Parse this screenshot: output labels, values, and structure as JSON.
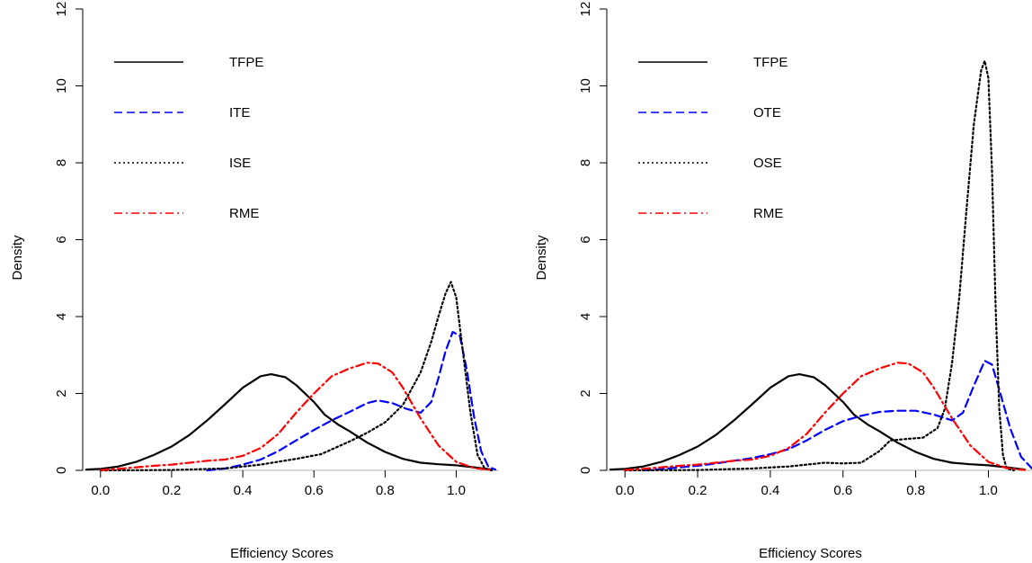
{
  "chart_data": [
    {
      "type": "line",
      "title": "",
      "xlabel": "Efficiency Scores",
      "ylabel": "Density",
      "xlim": [
        -0.05,
        1.12
      ],
      "ylim": [
        0,
        12
      ],
      "xticks": [
        "0.0",
        "0.2",
        "0.4",
        "0.6",
        "0.8",
        "1.0"
      ],
      "yticks": [
        "0",
        "2",
        "4",
        "6",
        "8",
        "10",
        "12"
      ],
      "reference_line_y": 0,
      "legend_position": "top-left",
      "grid": false,
      "series": [
        {
          "name": "TFPE",
          "color": "#000000",
          "style": "solid",
          "points": [
            [
              -0.04,
              0.02
            ],
            [
              0.0,
              0.04
            ],
            [
              0.05,
              0.1
            ],
            [
              0.1,
              0.22
            ],
            [
              0.15,
              0.4
            ],
            [
              0.2,
              0.62
            ],
            [
              0.25,
              0.92
            ],
            [
              0.3,
              1.3
            ],
            [
              0.35,
              1.72
            ],
            [
              0.4,
              2.15
            ],
            [
              0.45,
              2.45
            ],
            [
              0.48,
              2.5
            ],
            [
              0.52,
              2.42
            ],
            [
              0.55,
              2.22
            ],
            [
              0.6,
              1.78
            ],
            [
              0.63,
              1.45
            ],
            [
              0.67,
              1.18
            ],
            [
              0.7,
              1.02
            ],
            [
              0.75,
              0.72
            ],
            [
              0.8,
              0.48
            ],
            [
              0.85,
              0.3
            ],
            [
              0.9,
              0.2
            ],
            [
              0.95,
              0.16
            ],
            [
              1.0,
              0.13
            ],
            [
              1.05,
              0.08
            ],
            [
              1.1,
              0.02
            ]
          ]
        },
        {
          "name": "ITE",
          "color": "#0000ff",
          "style": "dashed",
          "points": [
            [
              0.3,
              0.0
            ],
            [
              0.35,
              0.05
            ],
            [
              0.4,
              0.15
            ],
            [
              0.45,
              0.28
            ],
            [
              0.5,
              0.5
            ],
            [
              0.55,
              0.78
            ],
            [
              0.6,
              1.05
            ],
            [
              0.65,
              1.3
            ],
            [
              0.7,
              1.52
            ],
            [
              0.75,
              1.75
            ],
            [
              0.78,
              1.82
            ],
            [
              0.82,
              1.75
            ],
            [
              0.86,
              1.6
            ],
            [
              0.9,
              1.5
            ],
            [
              0.93,
              1.78
            ],
            [
              0.95,
              2.4
            ],
            [
              0.97,
              3.1
            ],
            [
              0.99,
              3.6
            ],
            [
              1.01,
              3.5
            ],
            [
              1.03,
              2.6
            ],
            [
              1.05,
              1.4
            ],
            [
              1.07,
              0.5
            ],
            [
              1.09,
              0.1
            ],
            [
              1.11,
              0.02
            ]
          ]
        },
        {
          "name": "ISE",
          "color": "#000000",
          "style": "dotted",
          "points": [
            [
              0.0,
              0.0
            ],
            [
              0.2,
              0.01
            ],
            [
              0.35,
              0.05
            ],
            [
              0.45,
              0.15
            ],
            [
              0.55,
              0.3
            ],
            [
              0.62,
              0.42
            ],
            [
              0.7,
              0.75
            ],
            [
              0.75,
              0.98
            ],
            [
              0.8,
              1.25
            ],
            [
              0.85,
              1.7
            ],
            [
              0.9,
              2.55
            ],
            [
              0.93,
              3.35
            ],
            [
              0.95,
              4.0
            ],
            [
              0.97,
              4.6
            ],
            [
              0.985,
              4.9
            ],
            [
              1.0,
              4.5
            ],
            [
              1.02,
              3.0
            ],
            [
              1.04,
              1.5
            ],
            [
              1.06,
              0.4
            ],
            [
              1.08,
              0.05
            ],
            [
              1.1,
              0.0
            ]
          ]
        },
        {
          "name": "RME",
          "color": "#ff0000",
          "style": "dashdot",
          "points": [
            [
              0.0,
              0.01
            ],
            [
              0.05,
              0.04
            ],
            [
              0.1,
              0.08
            ],
            [
              0.15,
              0.12
            ],
            [
              0.2,
              0.15
            ],
            [
              0.25,
              0.2
            ],
            [
              0.3,
              0.25
            ],
            [
              0.35,
              0.28
            ],
            [
              0.4,
              0.38
            ],
            [
              0.45,
              0.58
            ],
            [
              0.5,
              0.95
            ],
            [
              0.55,
              1.5
            ],
            [
              0.6,
              2.0
            ],
            [
              0.65,
              2.45
            ],
            [
              0.7,
              2.65
            ],
            [
              0.75,
              2.8
            ],
            [
              0.78,
              2.78
            ],
            [
              0.82,
              2.55
            ],
            [
              0.85,
              2.15
            ],
            [
              0.9,
              1.35
            ],
            [
              0.95,
              0.65
            ],
            [
              1.0,
              0.22
            ],
            [
              1.05,
              0.06
            ],
            [
              1.1,
              0.01
            ]
          ]
        }
      ]
    },
    {
      "type": "line",
      "title": "",
      "xlabel": "Efficiency Scores",
      "ylabel": "Density",
      "xlim": [
        -0.05,
        1.12
      ],
      "ylim": [
        0,
        12
      ],
      "xticks": [
        "0.0",
        "0.2",
        "0.4",
        "0.6",
        "0.8",
        "1.0"
      ],
      "yticks": [
        "0",
        "2",
        "4",
        "6",
        "8",
        "10",
        "12"
      ],
      "reference_line_y": 0,
      "legend_position": "top-left",
      "grid": false,
      "series": [
        {
          "name": "TFPE",
          "color": "#000000",
          "style": "solid",
          "points": [
            [
              -0.04,
              0.02
            ],
            [
              0.0,
              0.04
            ],
            [
              0.05,
              0.1
            ],
            [
              0.1,
              0.22
            ],
            [
              0.15,
              0.4
            ],
            [
              0.2,
              0.62
            ],
            [
              0.25,
              0.92
            ],
            [
              0.3,
              1.3
            ],
            [
              0.35,
              1.72
            ],
            [
              0.4,
              2.15
            ],
            [
              0.45,
              2.45
            ],
            [
              0.48,
              2.5
            ],
            [
              0.52,
              2.42
            ],
            [
              0.55,
              2.22
            ],
            [
              0.6,
              1.78
            ],
            [
              0.63,
              1.45
            ],
            [
              0.67,
              1.18
            ],
            [
              0.7,
              1.02
            ],
            [
              0.75,
              0.72
            ],
            [
              0.8,
              0.48
            ],
            [
              0.85,
              0.3
            ],
            [
              0.9,
              0.2
            ],
            [
              0.95,
              0.16
            ],
            [
              1.0,
              0.13
            ],
            [
              1.05,
              0.08
            ],
            [
              1.1,
              0.02
            ]
          ]
        },
        {
          "name": "OTE",
          "color": "#0000ff",
          "style": "dashed",
          "points": [
            [
              0.05,
              0.0
            ],
            [
              0.1,
              0.03
            ],
            [
              0.15,
              0.08
            ],
            [
              0.2,
              0.12
            ],
            [
              0.25,
              0.18
            ],
            [
              0.3,
              0.25
            ],
            [
              0.35,
              0.32
            ],
            [
              0.4,
              0.42
            ],
            [
              0.45,
              0.55
            ],
            [
              0.5,
              0.78
            ],
            [
              0.55,
              1.05
            ],
            [
              0.6,
              1.28
            ],
            [
              0.65,
              1.42
            ],
            [
              0.7,
              1.52
            ],
            [
              0.75,
              1.55
            ],
            [
              0.8,
              1.55
            ],
            [
              0.85,
              1.45
            ],
            [
              0.9,
              1.3
            ],
            [
              0.93,
              1.5
            ],
            [
              0.96,
              2.2
            ],
            [
              0.99,
              2.85
            ],
            [
              1.01,
              2.75
            ],
            [
              1.03,
              2.1
            ],
            [
              1.06,
              1.1
            ],
            [
              1.09,
              0.35
            ],
            [
              1.12,
              0.05
            ]
          ]
        },
        {
          "name": "OSE",
          "color": "#000000",
          "style": "dotted",
          "points": [
            [
              0.0,
              0.0
            ],
            [
              0.2,
              0.01
            ],
            [
              0.35,
              0.05
            ],
            [
              0.45,
              0.1
            ],
            [
              0.5,
              0.15
            ],
            [
              0.55,
              0.2
            ],
            [
              0.6,
              0.18
            ],
            [
              0.65,
              0.2
            ],
            [
              0.7,
              0.5
            ],
            [
              0.73,
              0.78
            ],
            [
              0.78,
              0.82
            ],
            [
              0.82,
              0.85
            ],
            [
              0.86,
              1.1
            ],
            [
              0.88,
              1.6
            ],
            [
              0.9,
              2.8
            ],
            [
              0.92,
              4.5
            ],
            [
              0.94,
              6.8
            ],
            [
              0.96,
              9.0
            ],
            [
              0.98,
              10.4
            ],
            [
              0.99,
              10.65
            ],
            [
              1.0,
              10.2
            ],
            [
              1.01,
              7.8
            ],
            [
              1.02,
              4.2
            ],
            [
              1.03,
              1.6
            ],
            [
              1.04,
              0.4
            ],
            [
              1.05,
              0.05
            ],
            [
              1.07,
              0.0
            ]
          ]
        },
        {
          "name": "RME",
          "color": "#ff0000",
          "style": "dashdot",
          "points": [
            [
              0.0,
              0.01
            ],
            [
              0.05,
              0.04
            ],
            [
              0.1,
              0.08
            ],
            [
              0.15,
              0.12
            ],
            [
              0.2,
              0.15
            ],
            [
              0.25,
              0.2
            ],
            [
              0.3,
              0.25
            ],
            [
              0.35,
              0.28
            ],
            [
              0.4,
              0.38
            ],
            [
              0.45,
              0.58
            ],
            [
              0.5,
              0.95
            ],
            [
              0.55,
              1.5
            ],
            [
              0.6,
              2.0
            ],
            [
              0.65,
              2.45
            ],
            [
              0.7,
              2.65
            ],
            [
              0.75,
              2.8
            ],
            [
              0.78,
              2.78
            ],
            [
              0.82,
              2.55
            ],
            [
              0.85,
              2.15
            ],
            [
              0.9,
              1.35
            ],
            [
              0.95,
              0.65
            ],
            [
              1.0,
              0.22
            ],
            [
              1.05,
              0.06
            ],
            [
              1.1,
              0.01
            ]
          ]
        }
      ]
    }
  ]
}
